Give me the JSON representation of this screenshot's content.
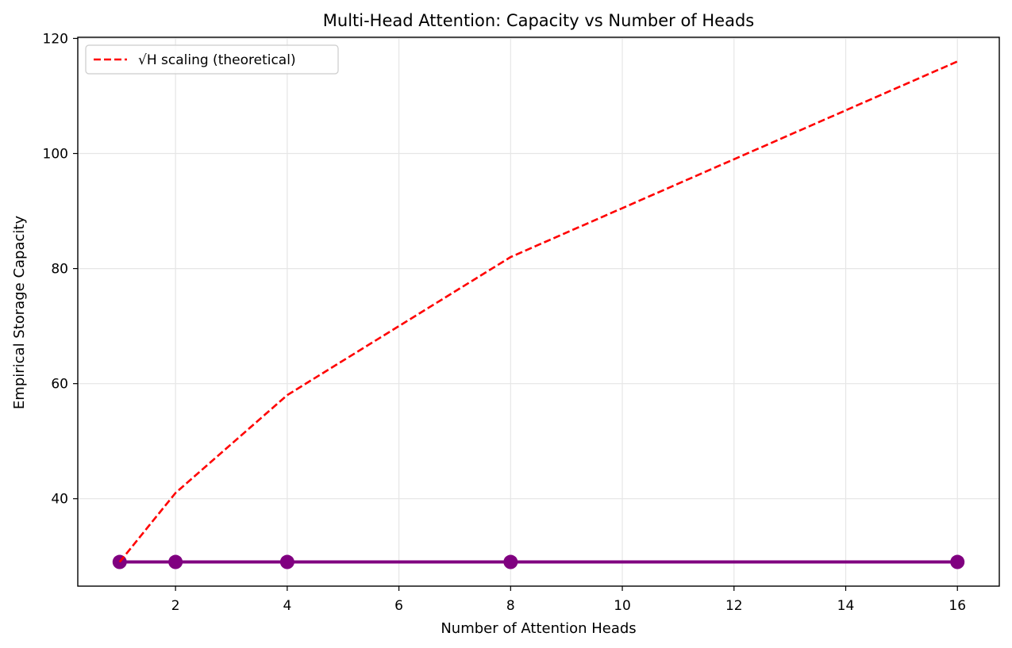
{
  "chart_data": {
    "type": "line",
    "title": "Multi-Head Attention: Capacity vs Number of Heads",
    "xlabel": "Number of Attention Heads",
    "ylabel": "Empirical Storage Capacity",
    "xlim": [
      0.25,
      16.75
    ],
    "ylim": [
      24.8,
      120.2
    ],
    "xticks": [
      2,
      4,
      6,
      8,
      10,
      12,
      14,
      16
    ],
    "yticks": [
      40,
      60,
      80,
      100,
      120
    ],
    "grid": true,
    "legend_position": "upper left",
    "series": [
      {
        "name": "",
        "style": "solid-with-markers",
        "color": "#800080",
        "x": [
          1,
          2,
          4,
          8,
          16
        ],
        "y": [
          29,
          29,
          29,
          29,
          29
        ]
      },
      {
        "name": "√H scaling (theoretical)",
        "style": "dashed",
        "color": "#ff0000",
        "x": [
          1,
          2,
          4,
          8,
          16
        ],
        "y": [
          29,
          41,
          58,
          82,
          116
        ]
      }
    ]
  }
}
